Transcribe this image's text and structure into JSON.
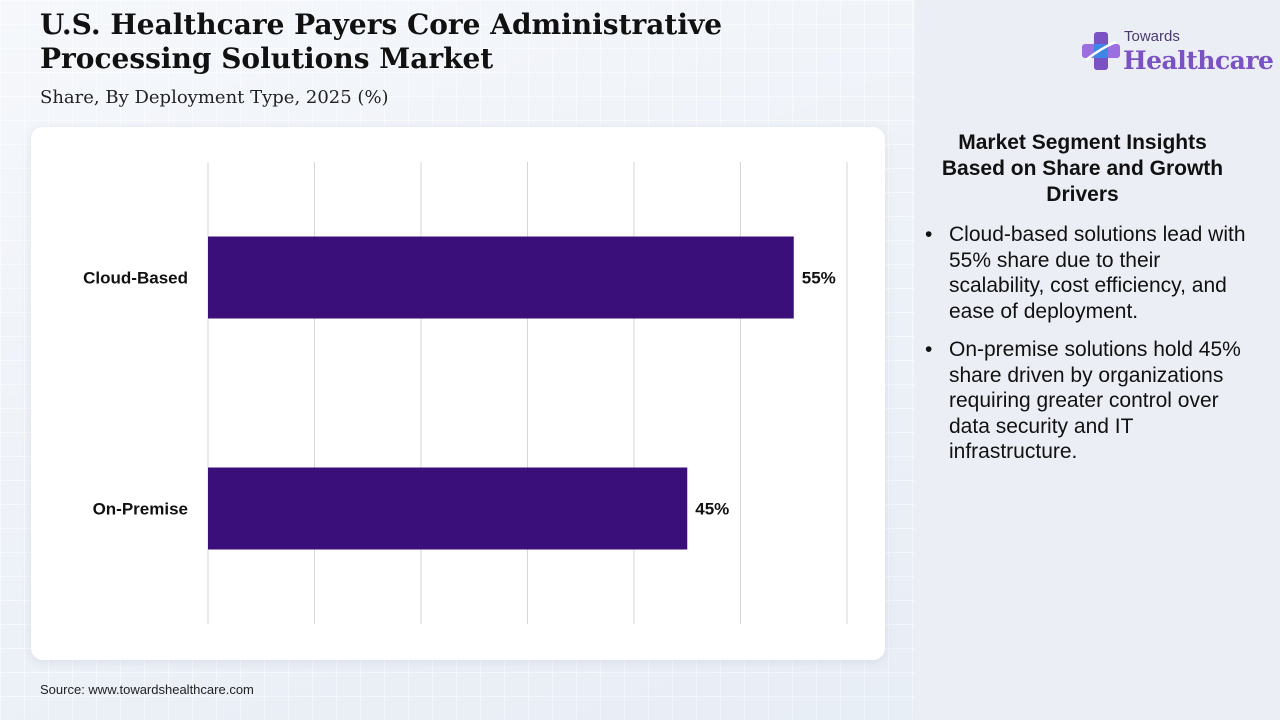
{
  "header": {
    "title": "U.S. Healthcare Payers Core Administrative Processing Solutions Market",
    "subtitle": "Share, By Deployment Type, 2025 (%)"
  },
  "logo": {
    "top_text": "Towards",
    "bottom_text": "Healthcare",
    "icon": "medical-cross-icon",
    "colors": {
      "primary": "#7b52c4",
      "accent": "#3d86e6"
    }
  },
  "chart_data": {
    "type": "bar",
    "orientation": "horizontal",
    "categories": [
      "Cloud-Based",
      "On-Premise"
    ],
    "values": [
      55,
      45
    ],
    "value_labels": [
      "55%",
      "45%"
    ],
    "xlim": [
      0,
      60
    ],
    "grid": true,
    "bar_color": "#3b0f7a"
  },
  "insights": {
    "title": "Market Segment Insights Based on Share and Growth Drivers",
    "bullet": "•",
    "items": [
      "Cloud-based solutions lead with 55% share due to their scalability, cost efficiency, and ease of deployment.",
      "On-premise solutions hold 45% share driven by organizations requiring greater control over data security and IT infrastructure."
    ]
  },
  "footer": {
    "source": "Source: www.towardshealthcare.com"
  }
}
